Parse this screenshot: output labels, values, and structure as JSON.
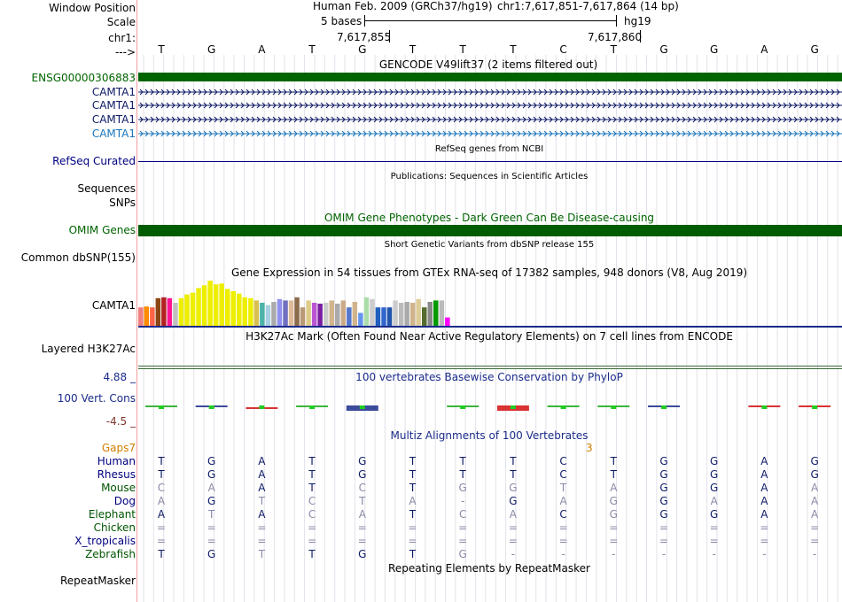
{
  "header": {
    "window_position_label": "Window Position",
    "scale_label": "Scale",
    "chrom_label": "chr1:",
    "arrow_label": "--->",
    "assembly_text": "Human Feb. 2009 (GRCh37/hg19)",
    "position_text": "chr1:7,617,851-7,617,864 (14 bp)",
    "scale_text": "5 bases",
    "db_text": "hg19",
    "pos1": "7,617,855",
    "pos2": "7,617,860"
  },
  "bases": [
    "T",
    "G",
    "A",
    "T",
    "G",
    "T",
    "T",
    "T",
    "C",
    "T",
    "G",
    "G",
    "A",
    "G"
  ],
  "colors": {
    "gencode_green": "#006400",
    "navy": "#000080",
    "omim_green": "#005c00",
    "phylop_blue": "#1a2b8a",
    "orange": "#d07f00",
    "brown": "#80352c"
  },
  "gencode": {
    "title": "GENCODE V49lift37 (2 items filtered out)",
    "ensg_label": "ENSG00000306883",
    "transcripts": [
      "CAMTA1",
      "CAMTA1",
      "CAMTA1",
      "CAMTA1"
    ]
  },
  "refseq": {
    "title": "RefSeq genes from NCBI",
    "label": "RefSeq Curated"
  },
  "publications": {
    "title": "Publications: Sequences in Scientific Articles",
    "label1": "Sequences",
    "label2": "SNPs"
  },
  "omim": {
    "title": "OMIM Gene Phenotypes - Dark Green Can Be Disease-causing",
    "label": "OMIM Genes"
  },
  "dbsnp": {
    "title": "Short Genetic Variants from dbSNP release 155",
    "label": "Common dbSNP(155)"
  },
  "gtex": {
    "title": "Gene Expression in 54 tissues from GTEx RNA-seq of 17382 samples, 948 donors (V8, Aug 2019)",
    "label": "CAMTA1",
    "bars": [
      {
        "v": 0.4,
        "c": "#f08080"
      },
      {
        "v": 0.42,
        "c": "#ff8c00"
      },
      {
        "v": 0.4,
        "c": "#ff6347"
      },
      {
        "v": 0.6,
        "c": "#8b4513"
      },
      {
        "v": 0.62,
        "c": "#b22222"
      },
      {
        "v": 0.6,
        "c": "#ff1493"
      },
      {
        "v": 0.5,
        "c": "#c0c0c0"
      },
      {
        "v": 0.6,
        "c": "#eeee00"
      },
      {
        "v": 0.68,
        "c": "#eeee00"
      },
      {
        "v": 0.72,
        "c": "#eeee00"
      },
      {
        "v": 0.82,
        "c": "#eeee00"
      },
      {
        "v": 0.88,
        "c": "#eeee00"
      },
      {
        "v": 0.98,
        "c": "#eeee00"
      },
      {
        "v": 0.9,
        "c": "#eeee00"
      },
      {
        "v": 0.92,
        "c": "#eeee00"
      },
      {
        "v": 0.8,
        "c": "#eeee00"
      },
      {
        "v": 0.75,
        "c": "#eeee00"
      },
      {
        "v": 0.7,
        "c": "#eeee00"
      },
      {
        "v": 0.62,
        "c": "#eeee00"
      },
      {
        "v": 0.6,
        "c": "#eeee00"
      },
      {
        "v": 0.55,
        "c": "#d8c050"
      },
      {
        "v": 0.5,
        "c": "#4db3a8"
      },
      {
        "v": 0.45,
        "c": "#a9cfe2"
      },
      {
        "v": 0.52,
        "c": "#aaaaaa"
      },
      {
        "v": 0.58,
        "c": "#9090ee"
      },
      {
        "v": 0.55,
        "c": "#7070c0"
      },
      {
        "v": 0.55,
        "c": "#ddbb99"
      },
      {
        "v": 0.62,
        "c": "#8b6b4a"
      },
      {
        "v": 0.4,
        "c": "#bb9977"
      },
      {
        "v": 0.55,
        "c": "#ddcc88"
      },
      {
        "v": 0.5,
        "c": "#ba55d3"
      },
      {
        "v": 0.48,
        "c": "#7b1fa2"
      },
      {
        "v": 0.5,
        "c": "#cccccc"
      },
      {
        "v": 0.55,
        "c": "#d2b48c"
      },
      {
        "v": 0.48,
        "c": "#aaaaaa"
      },
      {
        "v": 0.55,
        "c": "#ccaa88"
      },
      {
        "v": 0.4,
        "c": "#5577cc"
      },
      {
        "v": 0.52,
        "c": "#d2b48c"
      },
      {
        "v": 0.28,
        "c": "#6495ed"
      },
      {
        "v": 0.62,
        "c": "#aaddaa"
      },
      {
        "v": 0.58,
        "c": "#cccccc"
      },
      {
        "v": 0.4,
        "c": "#1f5fbf"
      },
      {
        "v": 0.4,
        "c": "#3366cc"
      },
      {
        "v": 0.4,
        "c": "#2255aa"
      },
      {
        "v": 0.55,
        "c": "#cccccc"
      },
      {
        "v": 0.5,
        "c": "#bbbbbb"
      },
      {
        "v": 0.52,
        "c": "#aaaaaa"
      },
      {
        "v": 0.5,
        "c": "#d2b48c"
      },
      {
        "v": 0.58,
        "c": "#ddcc99"
      },
      {
        "v": 0.4,
        "c": "#556b2f"
      },
      {
        "v": 0.52,
        "c": "#888888"
      },
      {
        "v": 0.55,
        "c": "#009900"
      },
      {
        "v": 0.55,
        "c": "#bbbbbb"
      },
      {
        "v": 0.18,
        "c": "#ff00ff"
      }
    ]
  },
  "h3k27": {
    "title": "H3K27Ac Mark (Often Found Near Active Regulatory Elements) on 7 cell lines from ENCODE",
    "label": "Layered H3K27Ac"
  },
  "phylop": {
    "title": "100 vertebrates Basewise Conservation by PhyloP",
    "label": "100 Vert. Cons",
    "max": "4.88 _",
    "min": "-4.5 _"
  },
  "multiz": {
    "title": "Multiz Alignments of 100 Vertebrates",
    "gaps_label": "Gaps7",
    "gap_number": "3",
    "species": [
      {
        "name": "Human",
        "color": "#000080",
        "row": [
          "T",
          "G",
          "A",
          "T",
          "G",
          "T",
          "T",
          "T",
          "C",
          "T",
          "G",
          "G",
          "A",
          "G"
        ],
        "dim": []
      },
      {
        "name": "Rhesus",
        "color": "#000080",
        "row": [
          "T",
          "G",
          "A",
          "T",
          "G",
          "T",
          "T",
          "T",
          "C",
          "T",
          "G",
          "G",
          "A",
          "G"
        ],
        "dim": []
      },
      {
        "name": "Mouse",
        "color": "#005500",
        "row": [
          "C",
          "A",
          "A",
          "T",
          "C",
          "T",
          "G",
          "G",
          "T",
          "A",
          "G",
          "G",
          "A",
          "A"
        ],
        "dim": [
          0,
          1,
          4,
          6,
          7,
          8,
          9,
          13
        ]
      },
      {
        "name": "Dog",
        "color": "#000080",
        "row": [
          "A",
          "G",
          "T",
          "C",
          "T",
          "A",
          "-",
          "G",
          "A",
          "G",
          "G",
          "A",
          "A",
          "A"
        ],
        "dim": [
          0,
          2,
          3,
          4,
          5,
          6,
          8,
          9,
          11,
          13
        ]
      },
      {
        "name": "Elephant",
        "color": "#005500",
        "row": [
          "A",
          "T",
          "A",
          "C",
          "A",
          "T",
          "C",
          "A",
          "C",
          "G",
          "G",
          "G",
          "A",
          "A"
        ],
        "dim": [
          1,
          3,
          4,
          6,
          7,
          9,
          13
        ]
      },
      {
        "name": "Chicken",
        "color": "#005500",
        "row": [
          "=",
          "=",
          "=",
          "=",
          "=",
          "=",
          "=",
          "=",
          "=",
          "=",
          "=",
          "=",
          "=",
          "="
        ],
        "dim": [
          0,
          1,
          2,
          3,
          4,
          5,
          6,
          7,
          8,
          9,
          10,
          11,
          12,
          13
        ]
      },
      {
        "name": "X_tropicalis",
        "color": "#000080",
        "row": [
          "=",
          "=",
          "=",
          "=",
          "=",
          "=",
          "=",
          "=",
          "=",
          "=",
          "=",
          "=",
          "=",
          "="
        ],
        "dim": [
          0,
          1,
          2,
          3,
          4,
          5,
          6,
          7,
          8,
          9,
          10,
          11,
          12,
          13
        ]
      },
      {
        "name": "Zebrafish",
        "color": "#005500",
        "row": [
          "T",
          "G",
          "T",
          "T",
          "G",
          "T",
          "G",
          "-",
          "-",
          "-",
          "-",
          "-",
          "-",
          "-"
        ],
        "dim": [
          2,
          6,
          7,
          8,
          9,
          10,
          11,
          12,
          13
        ]
      }
    ]
  },
  "repeatmasker": {
    "title": "Repeating Elements by RepeatMasker",
    "label": "RepeatMasker"
  }
}
